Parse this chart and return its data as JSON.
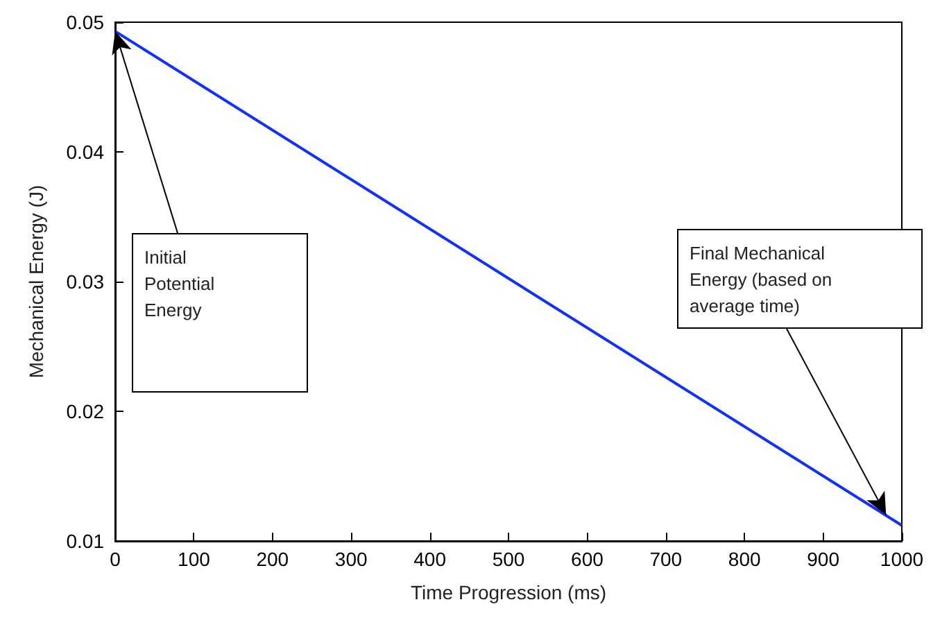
{
  "chart_data": {
    "type": "line",
    "xlabel": "Time Progression (ms)",
    "ylabel": "Mechanical Energy (J)",
    "x": [
      0,
      1000
    ],
    "series": [
      {
        "color": "#1030ff",
        "values": [
          0.0493,
          0.0112
        ]
      }
    ],
    "xlim": [
      0,
      1000
    ],
    "xticks": [
      0,
      100,
      200,
      300,
      400,
      500,
      600,
      700,
      800,
      900,
      1000
    ],
    "ylim": [
      0.01,
      0.05
    ],
    "yticks": [
      0.01,
      0.02,
      0.03,
      0.04,
      0.05
    ],
    "grid": false,
    "marker": "none",
    "line_style": "solid",
    "annotations": [
      {
        "text": "Initial Potential Energy",
        "x": 0,
        "y": 0.0493
      },
      {
        "text": "Final Mechanical Energy (based on average time)",
        "x": 980,
        "y": 0.012
      }
    ]
  }
}
